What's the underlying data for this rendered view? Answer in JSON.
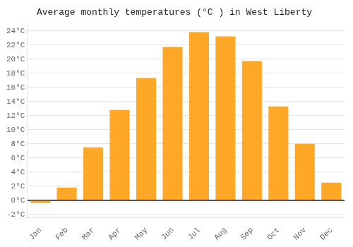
{
  "chart_data": {
    "type": "bar",
    "title": "Average monthly temperatures (°C ) in West Liberty",
    "categories": [
      "Jan",
      "Feb",
      "Mar",
      "Apr",
      "May",
      "Jun",
      "Jul",
      "Aug",
      "Sep",
      "Oct",
      "Nov",
      "Dec"
    ],
    "values": [
      -0.4,
      1.8,
      7.5,
      12.8,
      17.3,
      21.7,
      23.8,
      23.2,
      19.7,
      13.3,
      8.0,
      2.5
    ],
    "color": "#FFA726",
    "ylim": [
      -2.5,
      25
    ],
    "yticks": [
      {
        "value": -2,
        "label": "-2°C"
      },
      {
        "value": 0,
        "label": "0°C"
      },
      {
        "value": 2,
        "label": "2°C"
      },
      {
        "value": 4,
        "label": "4°C"
      },
      {
        "value": 6,
        "label": "6°C"
      },
      {
        "value": 8,
        "label": "8°C"
      },
      {
        "value": 10,
        "label": "10°C"
      },
      {
        "value": 12,
        "label": "12°C"
      },
      {
        "value": 14,
        "label": "14°C"
      },
      {
        "value": 16,
        "label": "16°C"
      },
      {
        "value": 18,
        "label": "18°C"
      },
      {
        "value": 20,
        "label": "20°C"
      },
      {
        "value": 22,
        "label": "22°C"
      },
      {
        "value": 24,
        "label": "24°C"
      }
    ],
    "grid": true
  }
}
